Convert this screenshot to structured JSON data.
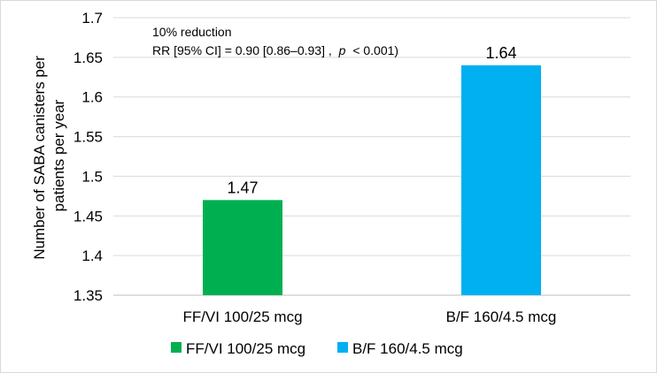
{
  "chart_data": {
    "type": "bar",
    "title": "",
    "xlabel": "",
    "ylabel": "Number of SABA canisters per patients per year",
    "ylabel_lines": [
      "Number of SABA canisters per",
      "patients per year"
    ],
    "categories": [
      "FF/VI 100/25 mcg",
      "B/F 160/4.5 mcg"
    ],
    "values": [
      1.47,
      1.64
    ],
    "data_labels": [
      "1.47",
      "1.64"
    ],
    "colors": [
      "#00b050",
      "#00b0f0"
    ],
    "ylim": [
      1.35,
      1.7
    ],
    "yticks": [
      "1.35",
      "1.4",
      "1.45",
      "1.5",
      "1.55",
      "1.6",
      "1.65",
      "1.7"
    ],
    "grid": true,
    "legend": {
      "position": "bottom",
      "entries": [
        "FF/VI 100/25 mcg",
        "B/F 160/4.5 mcg"
      ]
    },
    "annotation": {
      "line1": "10% reduction",
      "line2_prefix": "RR [95% CI] = 0.90 [0.86–0.93] ,",
      "line2_p": "p",
      "line2_suffix": "< 0.001)"
    }
  }
}
